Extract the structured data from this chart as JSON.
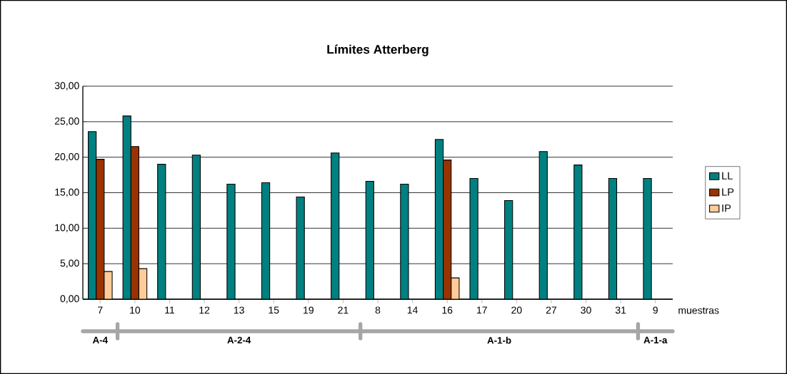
{
  "chart_data": {
    "type": "bar",
    "title": "Límites Atterberg",
    "xlabel": "muestras",
    "categories": [
      "7",
      "10",
      "11",
      "12",
      "13",
      "15",
      "19",
      "21",
      "8",
      "14",
      "16",
      "17",
      "20",
      "27",
      "30",
      "31",
      "9"
    ],
    "series": [
      {
        "name": "LL",
        "color": "#008080",
        "values": [
          23.6,
          25.8,
          19.0,
          20.3,
          16.2,
          16.4,
          14.4,
          20.6,
          16.6,
          16.2,
          22.5,
          17.0,
          13.9,
          20.8,
          18.9,
          17.0,
          17.0
        ]
      },
      {
        "name": "LP",
        "color": "#993300",
        "values": [
          19.7,
          21.5,
          null,
          null,
          null,
          null,
          null,
          null,
          null,
          null,
          19.6,
          null,
          null,
          null,
          null,
          null,
          null
        ]
      },
      {
        "name": "IP",
        "color": "#ffcc99",
        "values": [
          3.9,
          4.3,
          null,
          null,
          null,
          null,
          null,
          null,
          null,
          null,
          3.0,
          null,
          null,
          null,
          null,
          null,
          null
        ]
      }
    ],
    "ylim": [
      0,
      30
    ],
    "yticks": [
      {
        "value": 0,
        "label": "0,00"
      },
      {
        "value": 5,
        "label": "5,00"
      },
      {
        "value": 10,
        "label": "10,00"
      },
      {
        "value": 15,
        "label": "15,00"
      },
      {
        "value": 20,
        "label": "20,00"
      },
      {
        "value": 25,
        "label": "25,00"
      },
      {
        "value": 30,
        "label": "30,00"
      }
    ],
    "grid": "y",
    "legend": "right",
    "annotations": [
      "A-4",
      "A-2-4",
      "A-1-b",
      "A-1-a"
    ]
  }
}
